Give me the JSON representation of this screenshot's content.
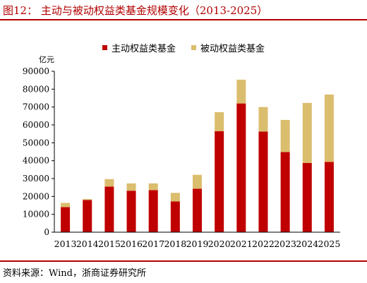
{
  "title": "图12：  主动与被动权益类基金规模变化（2013-2025）",
  "source": "资料来源：Wind，浙商证券研究所",
  "colors": {
    "accent": "#b30000",
    "active": "#c00000",
    "passive": "#dbbd6e"
  },
  "chart_data": {
    "type": "bar",
    "stacked": true,
    "unit_label": "亿元",
    "categories": [
      "2013",
      "2014",
      "2015",
      "2016",
      "2017",
      "2018",
      "2019",
      "2020",
      "2021",
      "2022",
      "2023",
      "2024",
      "2025"
    ],
    "series": [
      {
        "name": "主动权益类基金",
        "values": [
          14000,
          18000,
          25500,
          23200,
          23500,
          17200,
          24300,
          56500,
          72000,
          56300,
          44800,
          38700,
          39300
        ]
      },
      {
        "name": "被动权益类基金",
        "values": [
          2400,
          500,
          4200,
          4100,
          3800,
          4800,
          7800,
          10600,
          13300,
          13700,
          18000,
          33600,
          37700
        ]
      }
    ],
    "yticks": [
      0,
      10000,
      20000,
      30000,
      40000,
      50000,
      60000,
      70000,
      80000,
      90000
    ],
    "ylim": [
      0,
      90000
    ],
    "legend_position": "top-center"
  }
}
